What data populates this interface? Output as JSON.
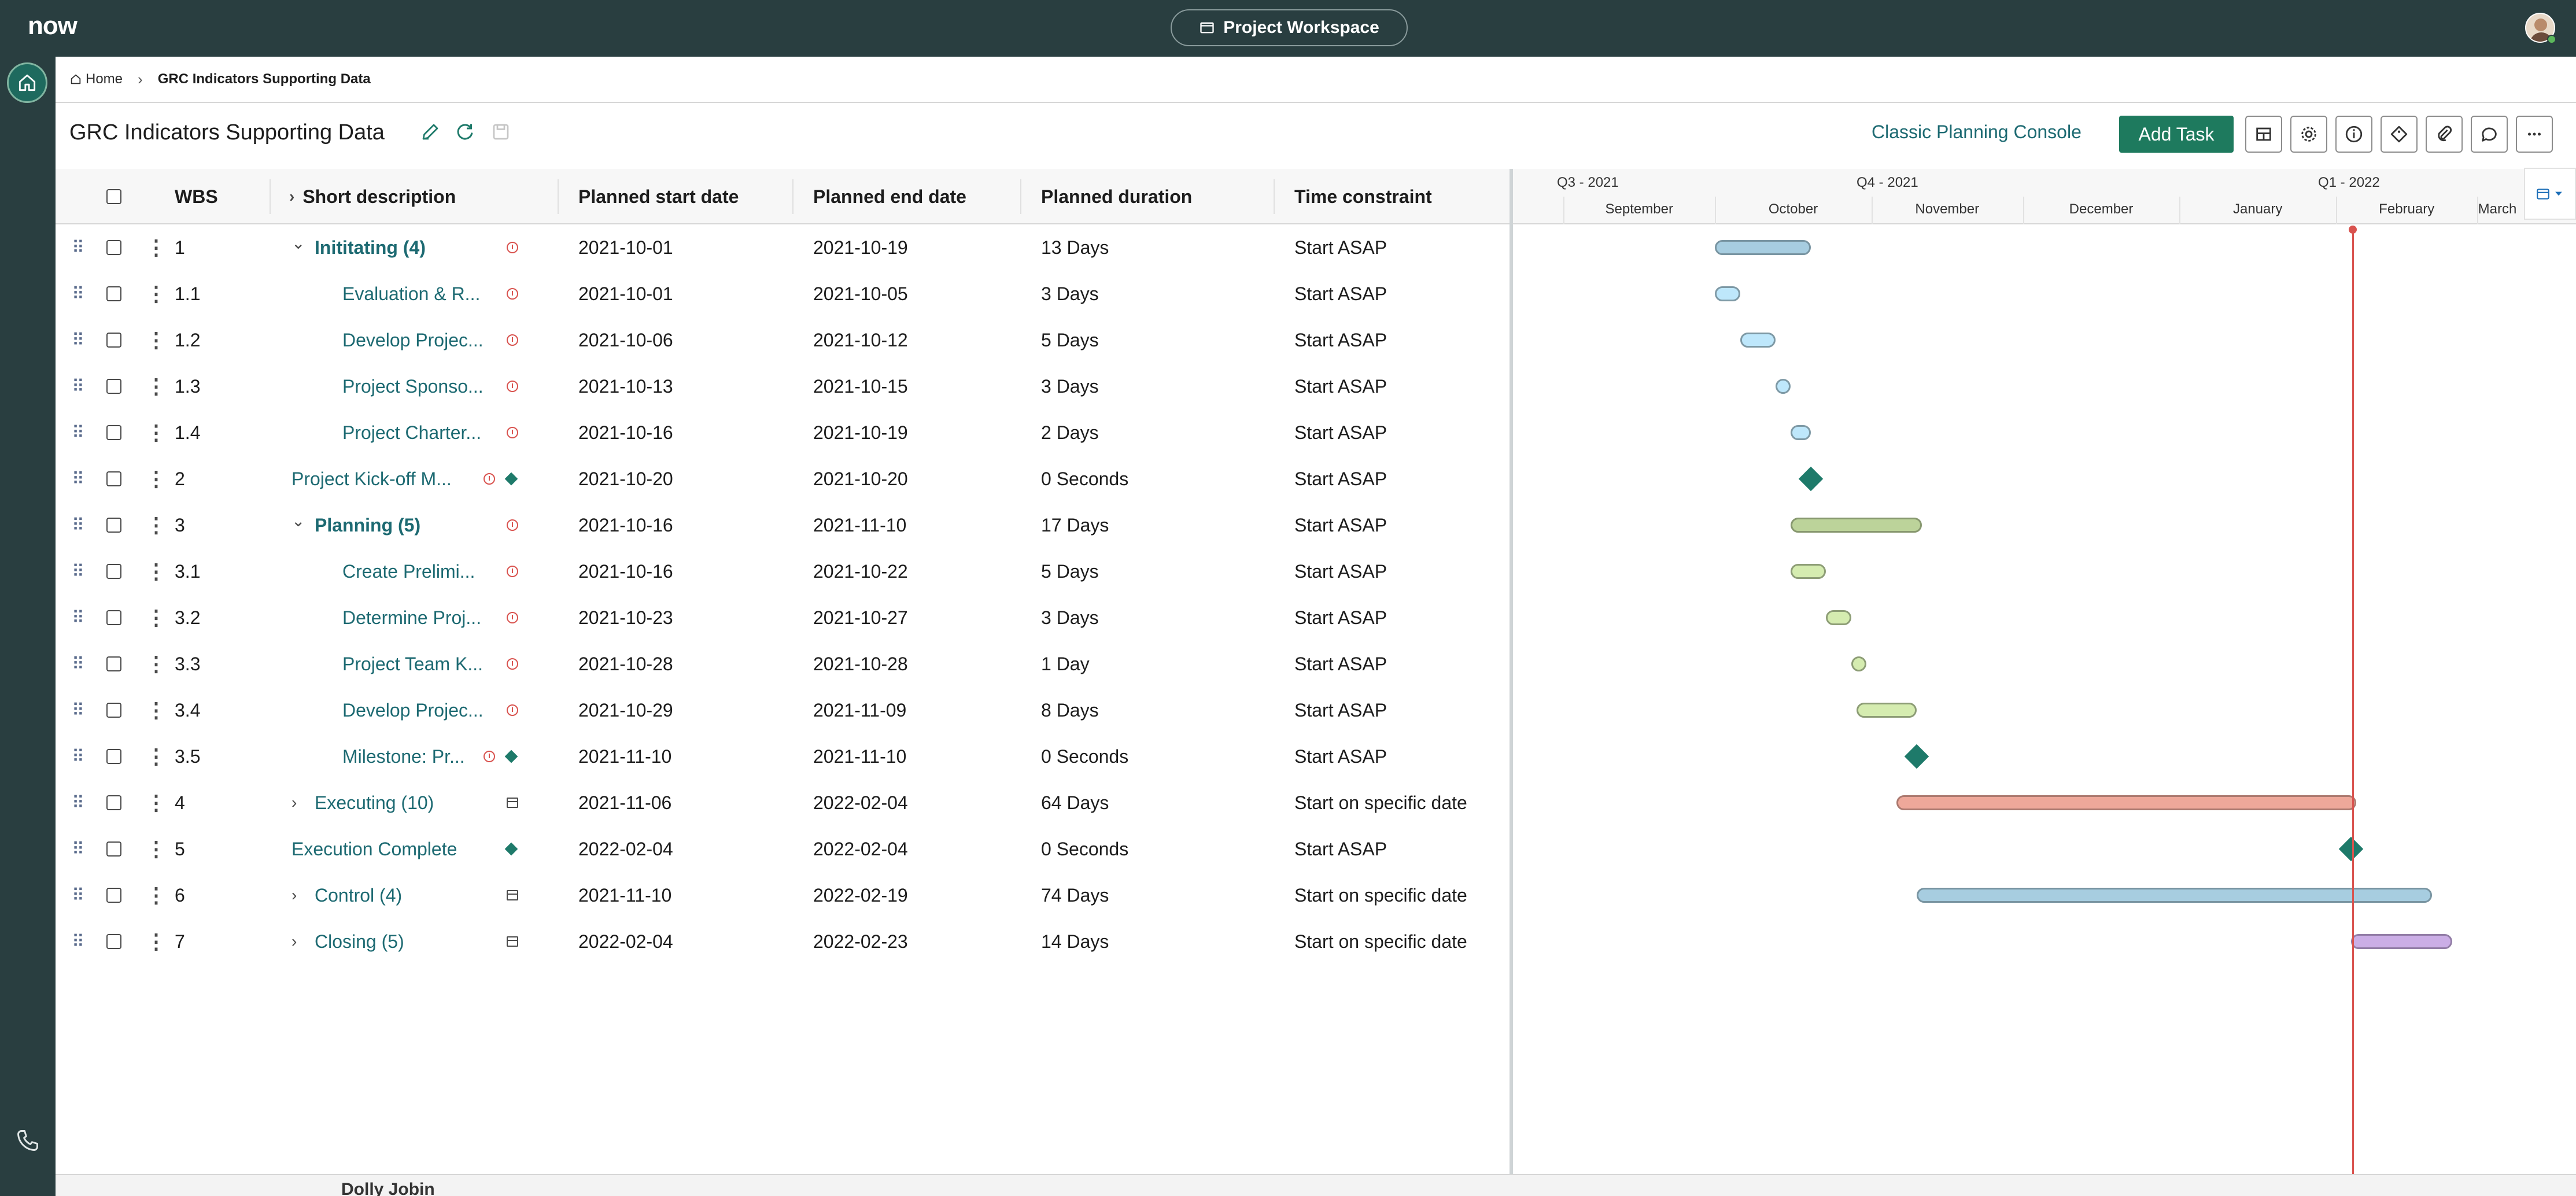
{
  "app": {
    "logo_text": "now",
    "workspace_title": "Project Workspace"
  },
  "breadcrumb": {
    "home_label": "Home",
    "current_label": "GRC Indicators Supporting Data"
  },
  "titlebar": {
    "title": "GRC Indicators Supporting Data",
    "classic_link": "Classic Planning Console",
    "add_task_label": "Add Task",
    "tools": [
      "layout-icon",
      "gear-icon",
      "info-icon",
      "tag-icon",
      "paperclip-icon",
      "comment-icon",
      "more-icon"
    ]
  },
  "grid": {
    "headers": {
      "wbs": "WBS",
      "short_description": "Short description",
      "planned_start": "Planned start date",
      "planned_end": "Planned end date",
      "planned_duration": "Planned duration",
      "time_constraint": "Time constraint"
    },
    "rows": [
      {
        "wbs": "1",
        "desc": "Inititating (4)",
        "level": 0,
        "group": "expanded",
        "bold": true,
        "icons": [
          "warn"
        ],
        "start": "2021-10-01",
        "end": "2021-10-19",
        "duration": "13 Days",
        "constraint": "Start ASAP"
      },
      {
        "wbs": "1.1",
        "desc": "Evaluation & R...",
        "level": 1,
        "group": "none",
        "bold": false,
        "icons": [
          "warn"
        ],
        "start": "2021-10-01",
        "end": "2021-10-05",
        "duration": "3 Days",
        "constraint": "Start ASAP"
      },
      {
        "wbs": "1.2",
        "desc": "Develop Projec...",
        "level": 1,
        "group": "none",
        "bold": false,
        "icons": [
          "warn"
        ],
        "start": "2021-10-06",
        "end": "2021-10-12",
        "duration": "5 Days",
        "constraint": "Start ASAP"
      },
      {
        "wbs": "1.3",
        "desc": "Project Sponso...",
        "level": 1,
        "group": "none",
        "bold": false,
        "icons": [
          "warn"
        ],
        "start": "2021-10-13",
        "end": "2021-10-15",
        "duration": "3 Days",
        "constraint": "Start ASAP"
      },
      {
        "wbs": "1.4",
        "desc": "Project Charter...",
        "level": 1,
        "group": "none",
        "bold": false,
        "icons": [
          "warn"
        ],
        "start": "2021-10-16",
        "end": "2021-10-19",
        "duration": "2 Days",
        "constraint": "Start ASAP"
      },
      {
        "wbs": "2",
        "desc": "Project Kick-off M...",
        "level": -1,
        "group": "none",
        "bold": false,
        "icons": [
          "warn",
          "milestone"
        ],
        "start": "2021-10-20",
        "end": "2021-10-20",
        "duration": "0 Seconds",
        "constraint": "Start ASAP"
      },
      {
        "wbs": "3",
        "desc": "Planning (5)",
        "level": 0,
        "group": "expanded",
        "bold": true,
        "icons": [
          "warn"
        ],
        "start": "2021-10-16",
        "end": "2021-11-10",
        "duration": "17 Days",
        "constraint": "Start ASAP"
      },
      {
        "wbs": "3.1",
        "desc": "Create Prelimi...",
        "level": 1,
        "group": "none",
        "bold": false,
        "icons": [
          "warn"
        ],
        "start": "2021-10-16",
        "end": "2021-10-22",
        "duration": "5 Days",
        "constraint": "Start ASAP"
      },
      {
        "wbs": "3.2",
        "desc": "Determine Proj...",
        "level": 1,
        "group": "none",
        "bold": false,
        "icons": [
          "warn"
        ],
        "start": "2021-10-23",
        "end": "2021-10-27",
        "duration": "3 Days",
        "constraint": "Start ASAP"
      },
      {
        "wbs": "3.3",
        "desc": "Project Team K...",
        "level": 1,
        "group": "none",
        "bold": false,
        "icons": [
          "warn"
        ],
        "start": "2021-10-28",
        "end": "2021-10-28",
        "duration": "1 Day",
        "constraint": "Start ASAP"
      },
      {
        "wbs": "3.4",
        "desc": "Develop Projec...",
        "level": 1,
        "group": "none",
        "bold": false,
        "icons": [
          "warn"
        ],
        "start": "2021-10-29",
        "end": "2021-11-09",
        "duration": "8 Days",
        "constraint": "Start ASAP"
      },
      {
        "wbs": "3.5",
        "desc": "Milestone: Pr...",
        "level": 1,
        "group": "none",
        "bold": false,
        "icons": [
          "warn",
          "milestone"
        ],
        "start": "2021-11-10",
        "end": "2021-11-10",
        "duration": "0 Seconds",
        "constraint": "Start ASAP"
      },
      {
        "wbs": "4",
        "desc": "Executing (10)",
        "level": 0,
        "group": "collapsed",
        "bold": false,
        "icons": [
          "calendar"
        ],
        "start": "2021-11-06",
        "end": "2022-02-04",
        "duration": "64 Days",
        "constraint": "Start on specific date"
      },
      {
        "wbs": "5",
        "desc": "Execution Complete",
        "level": -1,
        "group": "none",
        "bold": false,
        "icons": [
          "milestone"
        ],
        "start": "2022-02-04",
        "end": "2022-02-04",
        "duration": "0 Seconds",
        "constraint": "Start ASAP"
      },
      {
        "wbs": "6",
        "desc": "Control (4)",
        "level": 0,
        "group": "collapsed",
        "bold": false,
        "icons": [
          "calendar"
        ],
        "start": "2021-11-10",
        "end": "2022-02-19",
        "duration": "74 Days",
        "constraint": "Start on specific date"
      },
      {
        "wbs": "7",
        "desc": "Closing (5)",
        "level": 0,
        "group": "collapsed",
        "bold": false,
        "icons": [
          "calendar"
        ],
        "start": "2022-02-04",
        "end": "2022-02-23",
        "duration": "14 Days",
        "constraint": "Start on specific date"
      }
    ]
  },
  "gantt": {
    "quarters": [
      "Q3 - 2021",
      "Q4 - 2021",
      "Q1 - 2022"
    ],
    "months": [
      "September",
      "October",
      "November",
      "December",
      "January",
      "February",
      "March"
    ],
    "today": "2022-02-04",
    "colors": {
      "initiating": "#a7cde0",
      "planning": "#bcd39a",
      "executing": "#eea89a",
      "control": "#a7cde0",
      "closing": "#cbaee6",
      "milestone": "#1e7a6a",
      "today": "#d9534f"
    },
    "bar_colors": [
      "initiating",
      "initiating",
      "initiating",
      "initiating",
      "initiating",
      "milestone",
      "planning",
      "planning",
      "planning",
      "planning",
      "planning",
      "milestone",
      "executing",
      "milestone",
      "control",
      "closing"
    ]
  },
  "footer": {
    "ghost_text": "Dolly Jobin"
  }
}
